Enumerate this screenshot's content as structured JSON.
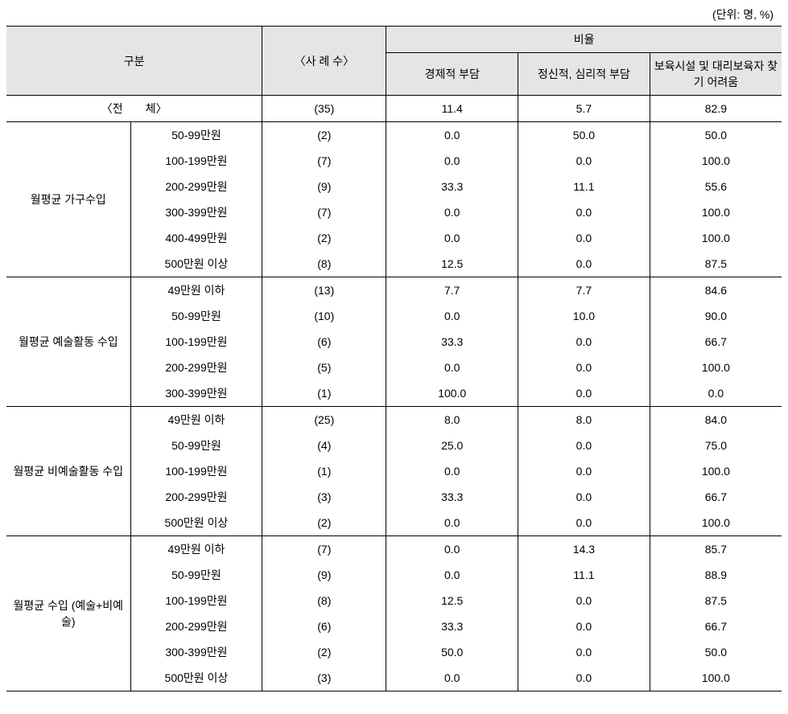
{
  "unit_label": "(단위: 명, %)",
  "header": {
    "category": "구분",
    "cases": "〈사 례 수〉",
    "ratio_group": "비율",
    "col1": "경제적 부담",
    "col2": "정신적, 심리적 부담",
    "col3": "보육시설 및 대리보육자 찾기 어려움"
  },
  "total": {
    "label": "〈전　　체〉",
    "n": "(35)",
    "v1": "11.4",
    "v2": "5.7",
    "v3": "82.9"
  },
  "groups": [
    {
      "label": "월평균 가구수입",
      "rows": [
        {
          "label": "50-99만원",
          "n": "(2)",
          "v1": "0.0",
          "v2": "50.0",
          "v3": "50.0"
        },
        {
          "label": "100-199만원",
          "n": "(7)",
          "v1": "0.0",
          "v2": "0.0",
          "v3": "100.0"
        },
        {
          "label": "200-299만원",
          "n": "(9)",
          "v1": "33.3",
          "v2": "11.1",
          "v3": "55.6"
        },
        {
          "label": "300-399만원",
          "n": "(7)",
          "v1": "0.0",
          "v2": "0.0",
          "v3": "100.0"
        },
        {
          "label": "400-499만원",
          "n": "(2)",
          "v1": "0.0",
          "v2": "0.0",
          "v3": "100.0"
        },
        {
          "label": "500만원 이상",
          "n": "(8)",
          "v1": "12.5",
          "v2": "0.0",
          "v3": "87.5"
        }
      ]
    },
    {
      "label": "월평균 예술활동 수입",
      "rows": [
        {
          "label": "49만원 이하",
          "n": "(13)",
          "v1": "7.7",
          "v2": "7.7",
          "v3": "84.6"
        },
        {
          "label": "50-99만원",
          "n": "(10)",
          "v1": "0.0",
          "v2": "10.0",
          "v3": "90.0"
        },
        {
          "label": "100-199만원",
          "n": "(6)",
          "v1": "33.3",
          "v2": "0.0",
          "v3": "66.7"
        },
        {
          "label": "200-299만원",
          "n": "(5)",
          "v1": "0.0",
          "v2": "0.0",
          "v3": "100.0"
        },
        {
          "label": "300-399만원",
          "n": "(1)",
          "v1": "100.0",
          "v2": "0.0",
          "v3": "0.0"
        }
      ]
    },
    {
      "label": "월평균 비예술활동 수입",
      "rows": [
        {
          "label": "49만원 이하",
          "n": "(25)",
          "v1": "8.0",
          "v2": "8.0",
          "v3": "84.0"
        },
        {
          "label": "50-99만원",
          "n": "(4)",
          "v1": "25.0",
          "v2": "0.0",
          "v3": "75.0"
        },
        {
          "label": "100-199만원",
          "n": "(1)",
          "v1": "0.0",
          "v2": "0.0",
          "v3": "100.0"
        },
        {
          "label": "200-299만원",
          "n": "(3)",
          "v1": "33.3",
          "v2": "0.0",
          "v3": "66.7"
        },
        {
          "label": "500만원 이상",
          "n": "(2)",
          "v1": "0.0",
          "v2": "0.0",
          "v3": "100.0"
        }
      ]
    },
    {
      "label": "월평균 수입 (예술+비예술)",
      "rows": [
        {
          "label": "49만원 이하",
          "n": "(7)",
          "v1": "0.0",
          "v2": "14.3",
          "v3": "85.7"
        },
        {
          "label": "50-99만원",
          "n": "(9)",
          "v1": "0.0",
          "v2": "11.1",
          "v3": "88.9"
        },
        {
          "label": "100-199만원",
          "n": "(8)",
          "v1": "12.5",
          "v2": "0.0",
          "v3": "87.5"
        },
        {
          "label": "200-299만원",
          "n": "(6)",
          "v1": "33.3",
          "v2": "0.0",
          "v3": "66.7"
        },
        {
          "label": "300-399만원",
          "n": "(2)",
          "v1": "50.0",
          "v2": "0.0",
          "v3": "50.0"
        },
        {
          "label": "500만원 이상",
          "n": "(3)",
          "v1": "0.0",
          "v2": "0.0",
          "v3": "100.0"
        }
      ]
    }
  ]
}
